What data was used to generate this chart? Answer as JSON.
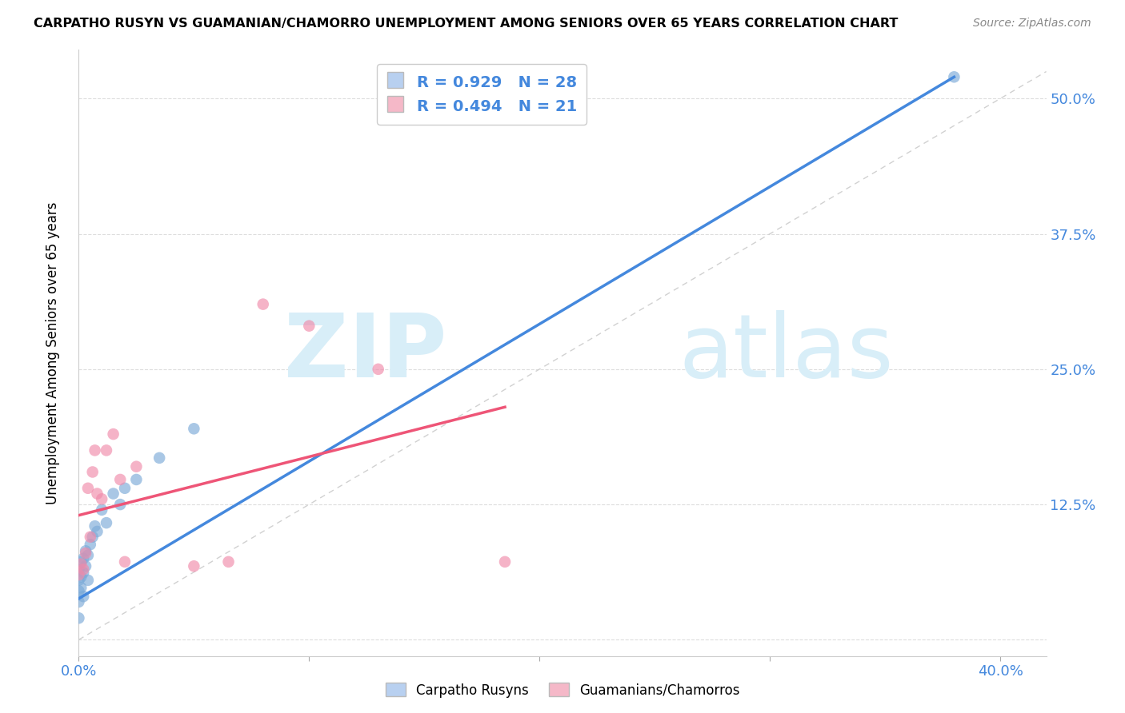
{
  "title": "CARPATHO RUSYN VS GUAMANIAN/CHAMORRO UNEMPLOYMENT AMONG SENIORS OVER 65 YEARS CORRELATION CHART",
  "source": "Source: ZipAtlas.com",
  "ylabel": "Unemployment Among Seniors over 65 years",
  "xlim": [
    0.0,
    0.42
  ],
  "ylim": [
    -0.015,
    0.545
  ],
  "legend_label1": "R = 0.929   N = 28",
  "legend_label2": "R = 0.494   N = 21",
  "legend_color1": "#b8d0f0",
  "legend_color2": "#f5b8c8",
  "scatter_color1": "#7baad8",
  "scatter_color2": "#f08aaa",
  "line_color1": "#4488dd",
  "line_color2": "#ee5577",
  "ref_line_color": "#ccaaaa",
  "watermark": "ZIPatlas",
  "watermark_color": "#d8eef8",
  "blue_label": "Carpatho Rusyns",
  "pink_label": "Guamanians/Chamorros",
  "blue_x": [
    0.0,
    0.0,
    0.0,
    0.0,
    0.0,
    0.001,
    0.001,
    0.001,
    0.002,
    0.002,
    0.002,
    0.003,
    0.003,
    0.004,
    0.004,
    0.005,
    0.006,
    0.007,
    0.008,
    0.01,
    0.012,
    0.015,
    0.018,
    0.02,
    0.025,
    0.035,
    0.05,
    0.38
  ],
  "blue_y": [
    0.02,
    0.035,
    0.045,
    0.055,
    0.065,
    0.048,
    0.058,
    0.072,
    0.04,
    0.062,
    0.075,
    0.068,
    0.082,
    0.055,
    0.078,
    0.088,
    0.095,
    0.105,
    0.1,
    0.12,
    0.108,
    0.135,
    0.125,
    0.14,
    0.148,
    0.168,
    0.195,
    0.52
  ],
  "pink_x": [
    0.0,
    0.001,
    0.002,
    0.003,
    0.004,
    0.005,
    0.006,
    0.007,
    0.008,
    0.01,
    0.012,
    0.015,
    0.018,
    0.02,
    0.025,
    0.05,
    0.065,
    0.08,
    0.1,
    0.13,
    0.185
  ],
  "pink_y": [
    0.06,
    0.07,
    0.065,
    0.08,
    0.14,
    0.095,
    0.155,
    0.175,
    0.135,
    0.13,
    0.175,
    0.19,
    0.148,
    0.072,
    0.16,
    0.068,
    0.072,
    0.31,
    0.29,
    0.25,
    0.072
  ],
  "blue_line_x": [
    0.0,
    0.38
  ],
  "blue_line_y": [
    0.038,
    0.52
  ],
  "pink_line_x": [
    0.0,
    0.185
  ],
  "pink_line_y": [
    0.115,
    0.215
  ]
}
